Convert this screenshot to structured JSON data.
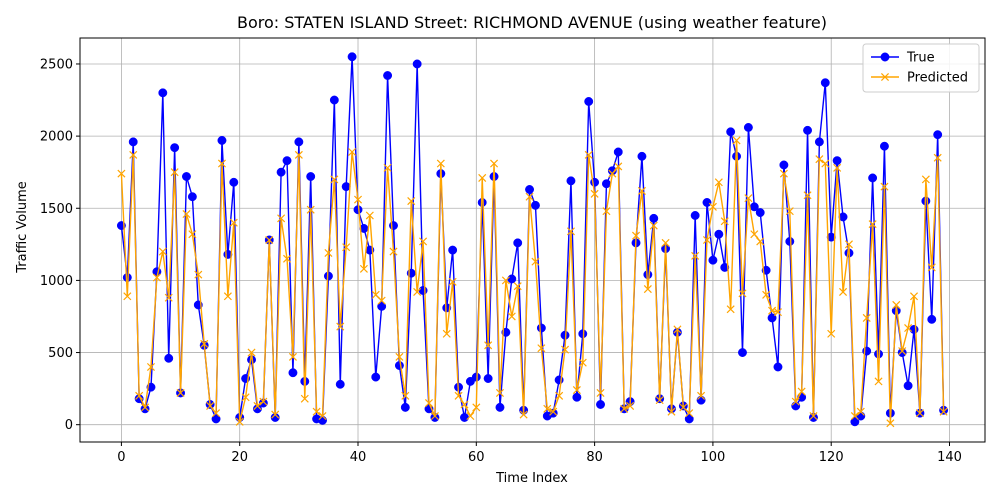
{
  "chart_data": {
    "type": "line",
    "title": "Boro: STATEN ISLAND Street: RICHMOND AVENUE (using weather feature)",
    "xlabel": "Time Index",
    "ylabel": "Traffic Volume",
    "xlim": [
      -7,
      146
    ],
    "ylim": [
      -120,
      2680
    ],
    "xticks": [
      0,
      20,
      40,
      60,
      80,
      100,
      120,
      140
    ],
    "yticks": [
      0,
      500,
      1000,
      1500,
      2000,
      2500
    ],
    "grid": true,
    "legend_position": "top-right",
    "series": [
      {
        "name": "True",
        "color": "#0000ff",
        "marker": "circle",
        "values": [
          1380,
          1020,
          1960,
          180,
          110,
          260,
          1060,
          2300,
          460,
          1920,
          220,
          1720,
          1580,
          830,
          550,
          140,
          40,
          1970,
          1180,
          1680,
          50,
          320,
          450,
          110,
          150,
          1280,
          50,
          1750,
          1830,
          360,
          1960,
          300,
          1720,
          40,
          30,
          1030,
          2250,
          280,
          1650,
          2550,
          1490,
          1360,
          1210,
          330,
          820,
          2420,
          1380,
          410,
          120,
          1050,
          2500,
          930,
          110,
          50,
          1740,
          810,
          1210,
          260,
          50,
          300,
          330,
          1540,
          320,
          1720,
          120,
          640,
          1010,
          1260,
          100,
          1630,
          1520,
          670,
          60,
          80,
          310,
          620,
          1690,
          190,
          630,
          2240,
          1680,
          140,
          1670,
          1760,
          1890,
          110,
          160,
          1260,
          1860,
          1040,
          1430,
          180,
          1220,
          110,
          640,
          130,
          40,
          1450,
          170,
          1540,
          1140,
          1320,
          1090,
          2030,
          1860,
          500,
          2060,
          1510,
          1470,
          1070,
          740,
          400,
          1800,
          1270,
          130,
          190,
          2040,
          50,
          1960,
          2370,
          1300,
          1830,
          1440,
          1190,
          20,
          60,
          510,
          1710,
          490,
          1930,
          80,
          790,
          500,
          270,
          660,
          80,
          1550,
          730,
          2010,
          100
        ]
      },
      {
        "name": "Predicted",
        "color": "#ffa500",
        "marker": "x",
        "values": [
          1740,
          890,
          1870,
          200,
          120,
          400,
          1020,
          1200,
          880,
          1750,
          220,
          1460,
          1320,
          1040,
          560,
          130,
          80,
          1810,
          890,
          1400,
          20,
          190,
          500,
          130,
          160,
          1280,
          70,
          1430,
          1150,
          470,
          1870,
          180,
          1490,
          90,
          60,
          1190,
          1700,
          680,
          1230,
          1890,
          1560,
          1080,
          1450,
          900,
          860,
          1780,
          1200,
          470,
          200,
          1550,
          920,
          1270,
          150,
          60,
          1810,
          630,
          990,
          200,
          140,
          60,
          120,
          1710,
          550,
          1810,
          220,
          1000,
          750,
          960,
          70,
          1580,
          1130,
          530,
          110,
          90,
          200,
          520,
          1340,
          240,
          430,
          1870,
          1600,
          220,
          1480,
          1740,
          1790,
          110,
          130,
          1310,
          1620,
          940,
          1380,
          170,
          1260,
          90,
          660,
          120,
          80,
          1170,
          200,
          1280,
          1510,
          1680,
          1410,
          800,
          1970,
          910,
          1570,
          1320,
          1270,
          900,
          790,
          780,
          1740,
          1480,
          160,
          230,
          1590,
          60,
          1840,
          1810,
          630,
          1780,
          920,
          1250,
          60,
          90,
          740,
          1390,
          300,
          1650,
          10,
          830,
          510,
          670,
          890,
          80,
          1700,
          1090,
          1850,
          90
        ]
      }
    ]
  }
}
